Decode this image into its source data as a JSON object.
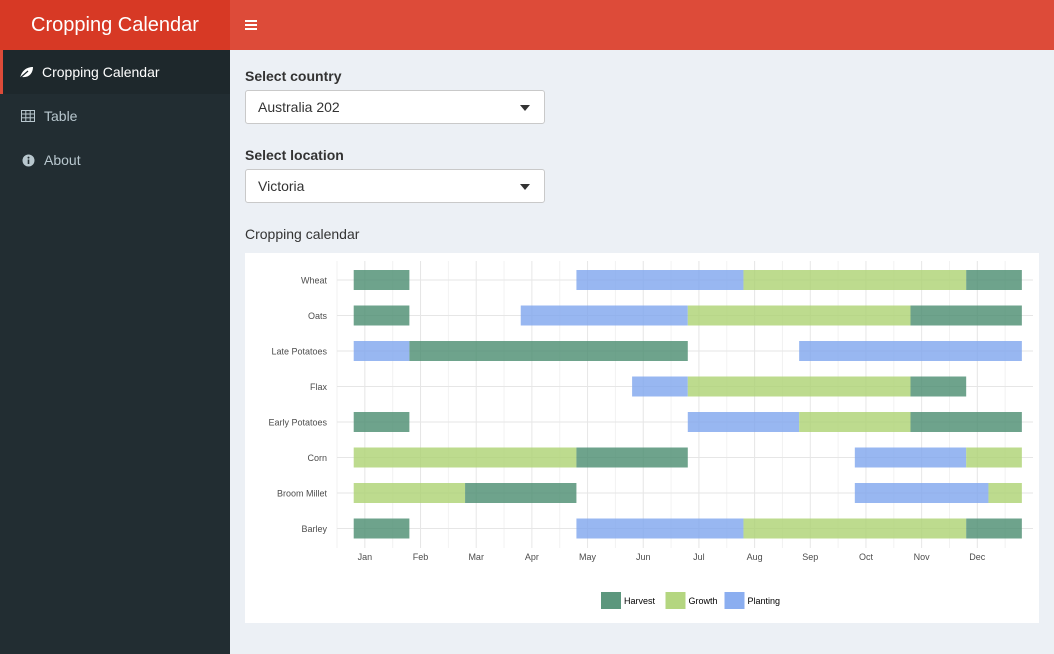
{
  "app": {
    "title": "Cropping Calendar"
  },
  "sidebar": {
    "items": [
      {
        "label": "Cropping Calendar",
        "icon": "leaf-icon"
      },
      {
        "label": "Table",
        "icon": "table-icon"
      },
      {
        "label": "About",
        "icon": "info-circle-icon"
      }
    ]
  },
  "filters": {
    "country": {
      "label": "Select country",
      "value": "Australia 202"
    },
    "location": {
      "label": "Select location",
      "value": "Victoria"
    }
  },
  "chart_section": {
    "title": "Cropping calendar"
  },
  "colors": {
    "header": "#dd4b39",
    "brand": "#d73925",
    "sidebar": "#222d32",
    "harvest": "#4a8c6f",
    "growth": "#acd272",
    "planting": "#7ea5ee"
  },
  "chart_data": {
    "type": "bar",
    "orientation": "horizontal-range",
    "months": [
      "Jan",
      "Feb",
      "Mar",
      "Apr",
      "May",
      "Jun",
      "Jul",
      "Aug",
      "Sep",
      "Oct",
      "Nov",
      "Dec"
    ],
    "crops": [
      "Wheat",
      "Oats",
      "Late Potatoes",
      "Flax",
      "Early Potatoes",
      "Corn",
      "Broom Millet",
      "Barley"
    ],
    "legend": {
      "position": "bottom",
      "entries": [
        "Harvest",
        "Growth",
        "Planting"
      ]
    },
    "grid": true,
    "segments": [
      {
        "crop": "Wheat",
        "stage": "Harvest",
        "start": 0.8,
        "end": 1.8
      },
      {
        "crop": "Wheat",
        "stage": "Planting",
        "start": 4.8,
        "end": 7.8
      },
      {
        "crop": "Wheat",
        "stage": "Growth",
        "start": 7.8,
        "end": 11.8
      },
      {
        "crop": "Wheat",
        "stage": "Harvest",
        "start": 11.8,
        "end": 12.8
      },
      {
        "crop": "Oats",
        "stage": "Harvest",
        "start": 0.8,
        "end": 1.8
      },
      {
        "crop": "Oats",
        "stage": "Planting",
        "start": 3.8,
        "end": 6.8
      },
      {
        "crop": "Oats",
        "stage": "Growth",
        "start": 6.8,
        "end": 10.8
      },
      {
        "crop": "Oats",
        "stage": "Harvest",
        "start": 10.8,
        "end": 12.8
      },
      {
        "crop": "Late Potatoes",
        "stage": "Planting",
        "start": 0.8,
        "end": 1.8
      },
      {
        "crop": "Late Potatoes",
        "stage": "Harvest",
        "start": 1.8,
        "end": 6.8
      },
      {
        "crop": "Late Potatoes",
        "stage": "Planting",
        "start": 8.8,
        "end": 12.8
      },
      {
        "crop": "Flax",
        "stage": "Planting",
        "start": 5.8,
        "end": 6.8
      },
      {
        "crop": "Flax",
        "stage": "Growth",
        "start": 6.8,
        "end": 10.8
      },
      {
        "crop": "Flax",
        "stage": "Harvest",
        "start": 10.8,
        "end": 11.8
      },
      {
        "crop": "Early Potatoes",
        "stage": "Harvest",
        "start": 0.8,
        "end": 1.8
      },
      {
        "crop": "Early Potatoes",
        "stage": "Planting",
        "start": 6.8,
        "end": 8.8
      },
      {
        "crop": "Early Potatoes",
        "stage": "Growth",
        "start": 8.8,
        "end": 10.8
      },
      {
        "crop": "Early Potatoes",
        "stage": "Harvest",
        "start": 10.8,
        "end": 12.8
      },
      {
        "crop": "Corn",
        "stage": "Growth",
        "start": 0.8,
        "end": 4.8
      },
      {
        "crop": "Corn",
        "stage": "Harvest",
        "start": 4.8,
        "end": 6.8
      },
      {
        "crop": "Corn",
        "stage": "Planting",
        "start": 9.8,
        "end": 11.8
      },
      {
        "crop": "Corn",
        "stage": "Growth",
        "start": 11.8,
        "end": 12.8
      },
      {
        "crop": "Broom Millet",
        "stage": "Growth",
        "start": 0.8,
        "end": 2.8
      },
      {
        "crop": "Broom Millet",
        "stage": "Harvest",
        "start": 2.8,
        "end": 4.8
      },
      {
        "crop": "Broom Millet",
        "stage": "Planting",
        "start": 9.8,
        "end": 12.2
      },
      {
        "crop": "Broom Millet",
        "stage": "Growth",
        "start": 12.2,
        "end": 12.8
      },
      {
        "crop": "Barley",
        "stage": "Harvest",
        "start": 0.8,
        "end": 1.8
      },
      {
        "crop": "Barley",
        "stage": "Planting",
        "start": 4.8,
        "end": 7.8
      },
      {
        "crop": "Barley",
        "stage": "Growth",
        "start": 7.8,
        "end": 11.8
      },
      {
        "crop": "Barley",
        "stage": "Harvest",
        "start": 11.8,
        "end": 12.8
      }
    ]
  }
}
